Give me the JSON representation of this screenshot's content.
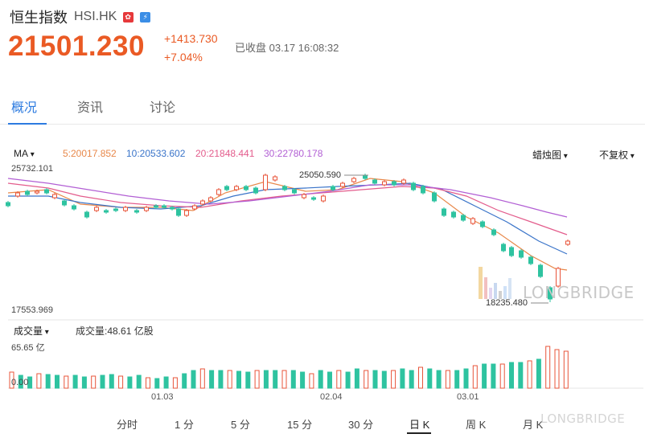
{
  "header": {
    "name": "恒生指数",
    "symbol": "HSI.HK",
    "flag_icon": "hk-flag-icon",
    "tag_icon": "shortsell-tag-icon",
    "price": "21501.230",
    "change": "+1413.730",
    "change_pct": "+7.04%",
    "status": "已收盘 03.17 16:08:32"
  },
  "tabs": [
    {
      "label": "概况",
      "active": true
    },
    {
      "label": "资讯",
      "active": false
    },
    {
      "label": "讨论",
      "active": false
    }
  ],
  "ma": {
    "selector": "MA",
    "ma5": "5:20017.852",
    "ma10": "10:20533.602",
    "ma20": "20:21848.441",
    "ma30": "30:22780.178",
    "chart_type": "蜡烛图",
    "adjust": "不复权",
    "colors": {
      "ma5": "#e8884a",
      "ma10": "#3a74c9",
      "ma20": "#e35c8c",
      "ma30": "#b25fd4",
      "up": "#e8543a",
      "down": "#2ec3a0"
    }
  },
  "price_axis": {
    "top": "25732.101",
    "bottom": "17553.969",
    "high_label": "25050.590",
    "low_label": "18235.480"
  },
  "volume": {
    "selector": "成交量",
    "total": "成交量:48.61 亿股",
    "max_label": "65.65 亿",
    "zero_label": "0.00"
  },
  "x_axis": [
    "01.03",
    "02.04",
    "03.01"
  ],
  "periods": [
    {
      "label": "分时",
      "active": false
    },
    {
      "label": "1 分",
      "active": false
    },
    {
      "label": "5 分",
      "active": false
    },
    {
      "label": "15 分",
      "active": false
    },
    {
      "label": "30 分",
      "active": false
    },
    {
      "label": "日 K",
      "active": true
    },
    {
      "label": "周 K",
      "active": false
    },
    {
      "label": "月 K",
      "active": false
    }
  ],
  "watermark": "LONGBRIDGE"
}
